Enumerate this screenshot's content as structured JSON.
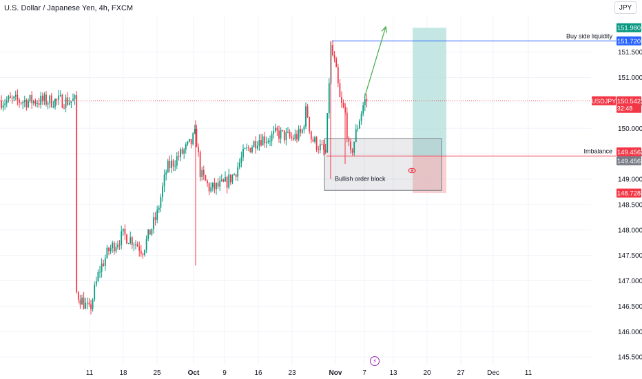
{
  "header": {
    "title": "U.S. Dollar / Japanese Yen, 4h, FXCM",
    "currency_button": "JPY"
  },
  "chart_data": {
    "type": "candlestick",
    "symbol": "USDJPY",
    "interval": "4h",
    "y_axis": {
      "ticks": [
        145.5,
        146.0,
        146.5,
        147.0,
        147.5,
        148.0,
        148.5,
        149.0,
        149.5,
        150.0,
        150.5,
        151.0,
        151.5
      ],
      "tick_labels": [
        "145.500",
        "146.000",
        "146.500",
        "147.000",
        "147.500",
        "148.000",
        "148.500",
        "149.000",
        "149.500",
        "150.000",
        "150.500",
        "151.000",
        "151.500"
      ],
      "range": [
        145.34,
        152.2
      ]
    },
    "x_axis": {
      "tick_labels": [
        "11",
        "18",
        "25",
        "Oct",
        "9",
        "16",
        "23",
        "Nov",
        "7",
        "13",
        "20",
        "27",
        "Dec",
        "11"
      ],
      "bold_labels": [
        "Oct",
        "Nov"
      ]
    },
    "approx_close_path": [
      [
        "Sep 8",
        146.8
      ],
      [
        "Sep 11",
        146.4
      ],
      [
        "Sep 13",
        147.2
      ],
      [
        "Sep 15",
        147.6
      ],
      [
        "Sep 18",
        147.9
      ],
      [
        "Sep 20",
        147.8
      ],
      [
        "Sep 22",
        147.6
      ],
      [
        "Sep 25",
        148.3
      ],
      [
        "Sep 27",
        149.2
      ],
      [
        "Sep 29",
        149.4
      ],
      [
        "Oct 2",
        149.7
      ],
      [
        "Oct 3",
        149.9
      ],
      [
        "Oct 4",
        149.1
      ],
      [
        "Oct 6",
        148.8
      ],
      [
        "Oct 9",
        148.9
      ],
      [
        "Oct 11",
        149.1
      ],
      [
        "Oct 13",
        149.5
      ],
      [
        "Oct 16",
        149.8
      ],
      [
        "Oct 18",
        149.8
      ],
      [
        "Oct 20",
        149.9
      ],
      [
        "Oct 23",
        149.8
      ],
      [
        "Oct 25",
        149.9
      ],
      [
        "Oct 26",
        150.4
      ],
      [
        "Oct 27",
        149.8
      ],
      [
        "Oct 30",
        149.5
      ],
      [
        "Oct 31",
        151.6
      ],
      [
        "Nov 1",
        151.2
      ],
      [
        "Nov 2",
        150.5
      ],
      [
        "Nov 3",
        150.3
      ],
      [
        "Nov 4",
        149.4
      ],
      [
        "Nov 5",
        149.8
      ],
      [
        "Nov 6",
        150.2
      ],
      [
        "Nov 7",
        150.54
      ]
    ],
    "notable_wicks": [
      {
        "date": "Oct 3",
        "high": 150.16,
        "low": 147.3
      },
      {
        "date": "Oct 31",
        "high": 151.72,
        "low": 149.0
      },
      {
        "date": "Nov 3",
        "high": 150.5,
        "low": 149.3
      }
    ],
    "current_price": {
      "symbol": "USDJPY",
      "value": "150.542",
      "countdown": "32:48",
      "color": "#f23645"
    },
    "price_labels": [
      {
        "value": "151.980",
        "price": 151.98,
        "color": "#089981"
      },
      {
        "value": "151.720",
        "price": 151.72,
        "color": "#2962ff"
      },
      {
        "value": "149.456",
        "price": 149.456,
        "color": "#f23645"
      },
      {
        "value": "149.456",
        "price": 149.456,
        "color": "#787b86"
      },
      {
        "value": "148.728",
        "price": 148.728,
        "color": "#f23645"
      }
    ],
    "horizontal_lines": [
      {
        "label": "Buy side liquidity",
        "price": 151.72,
        "color": "#2962ff"
      },
      {
        "label": "Imbalance",
        "price": 149.456,
        "color": "#f23645"
      }
    ],
    "order_block": {
      "label": "Bullish order block",
      "top": 149.8,
      "bottom": 148.78,
      "start": "Oct 30",
      "end": "Nov 23"
    },
    "position": {
      "type": "long",
      "entry": 149.456,
      "target": 151.98,
      "stop": 148.728,
      "start": "Nov 17",
      "end": "Nov 24",
      "profit_color": "#b2dfdb",
      "loss_color": "#f7c5c5"
    },
    "projection_arrow": {
      "from_date": "Nov 7",
      "from_price": 150.6,
      "to_date": "Nov 10",
      "to_price": 152.0,
      "color": "#4caf50"
    },
    "colors": {
      "up": "#089981",
      "down": "#f23645",
      "grid": "#f0f3fa",
      "axis_text": "#131722"
    }
  }
}
